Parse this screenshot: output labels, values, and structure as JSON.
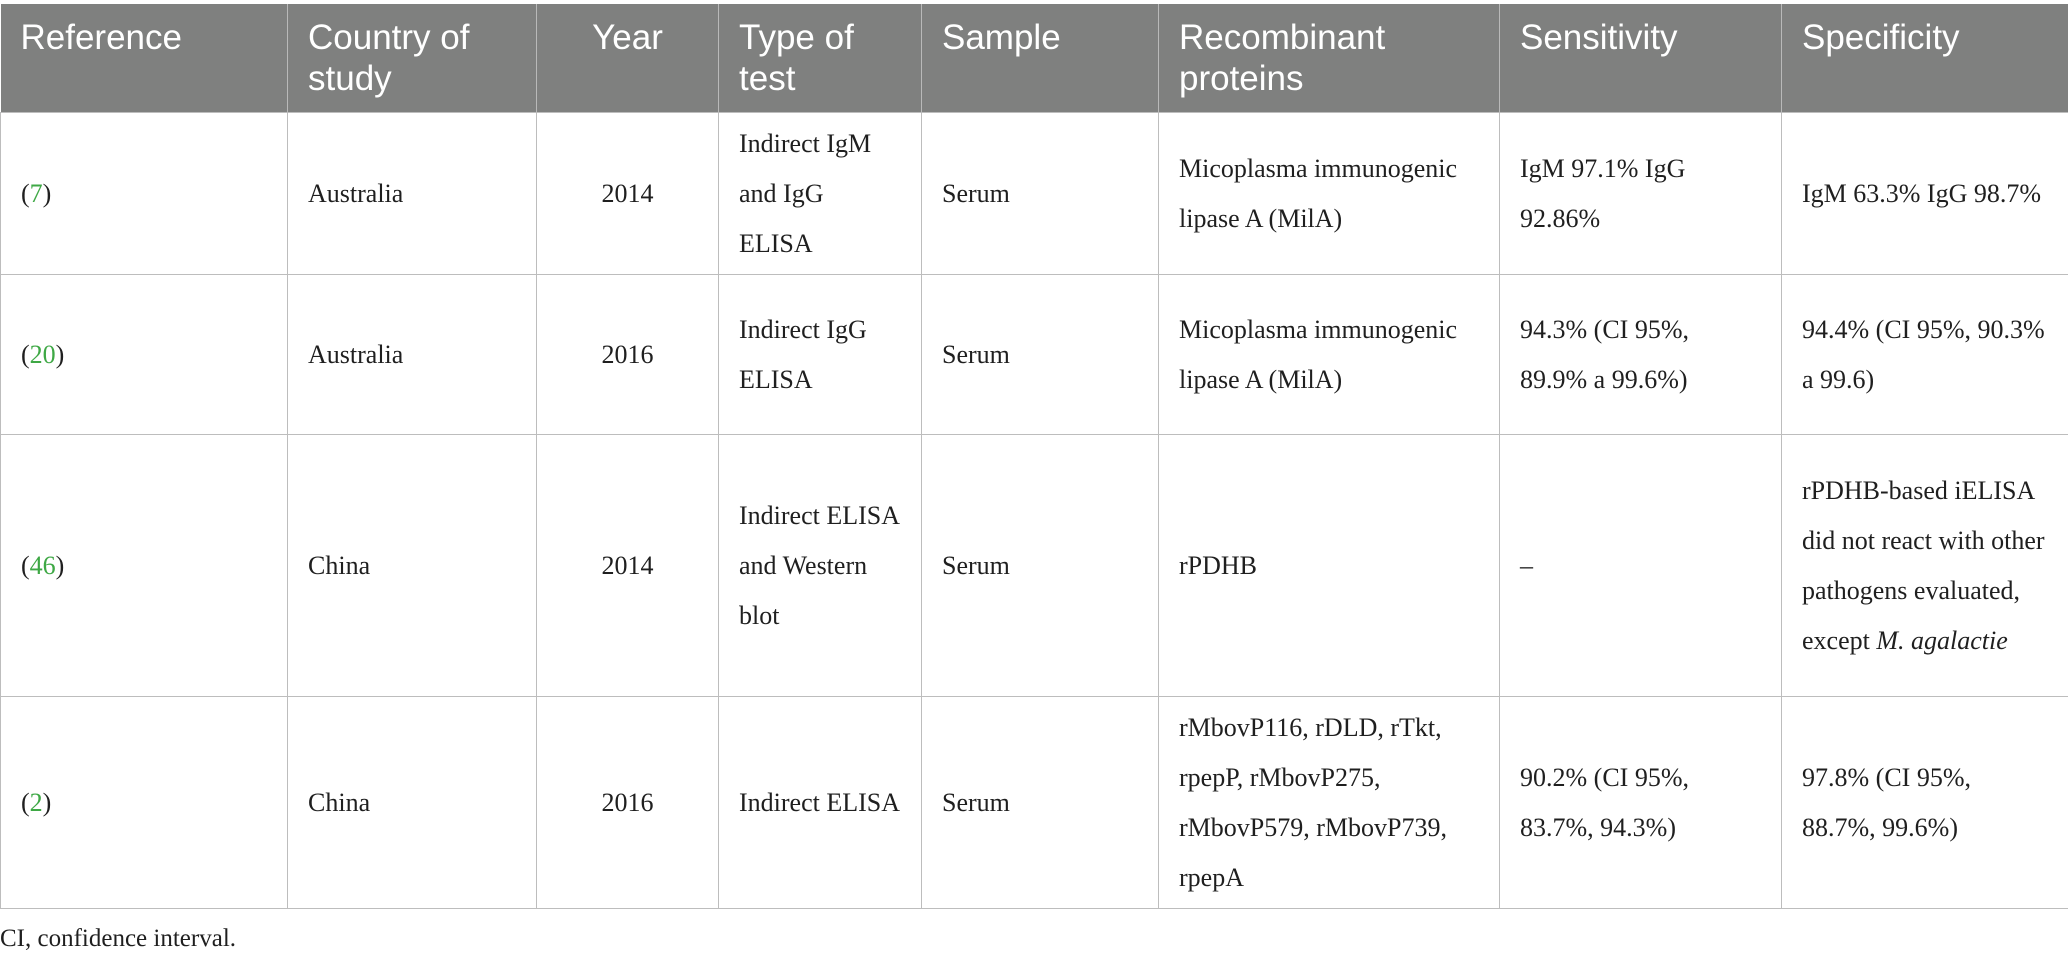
{
  "headers": {
    "reference": "Reference",
    "country": "Country of study",
    "year": "Year",
    "type": "Type of test",
    "sample": "Sample",
    "proteins": "Recombinant proteins",
    "sensitivity": "Sensitivity",
    "specificity": "Specificity"
  },
  "rows": [
    {
      "ref_open": "(",
      "ref_num": "7",
      "ref_close": ")",
      "country": "Australia",
      "year": "2014",
      "type": "Indirect IgM and IgG ELISA",
      "sample": "Serum",
      "proteins": "Micoplasma immunogenic lipase A (MilA)",
      "sensitivity": "IgM 97.1% IgG 92.86%",
      "specificity": "IgM 63.3% IgG 98.7%"
    },
    {
      "ref_open": "(",
      "ref_num": "20",
      "ref_close": ")",
      "country": "Australia",
      "year": "2016",
      "type": "Indirect IgG ELISA",
      "sample": "Serum",
      "proteins": "Micoplasma immunogenic lipase A (MilA)",
      "sensitivity": "94.3% (CI 95%, 89.9% a 99.6%)",
      "specificity": "94.4% (CI 95%, 90.3% a 99.6)"
    },
    {
      "ref_open": "(",
      "ref_num": "46",
      "ref_close": ")",
      "country": "China",
      "year": "2014",
      "type": "Indirect ELISA and Western blot",
      "sample": "Serum",
      "proteins": "rPDHB",
      "sensitivity": "–",
      "specificity_main": "rPDHB-based iELISA did not react with other pathogens evaluated, except ",
      "specificity_italic": "M. agalactie"
    },
    {
      "ref_open": "(",
      "ref_num": "2",
      "ref_close": ")",
      "country": "China",
      "year": "2016",
      "type": "Indirect ELISA",
      "sample": "Serum",
      "proteins": "rMbovP116, rDLD, rTkt, rpepP, rMbovP275, rMbovP579, rMbovP739, rpepA",
      "sensitivity": "90.2% (CI 95%, 83.7%, 94.3%)",
      "specificity": "97.8% (CI 95%, 88.7%, 99.6%)"
    }
  ],
  "footnote": "CI, confidence interval.",
  "colors": {
    "header_bg": "#7f807f",
    "header_text": "#ffffff",
    "link_green": "#3ea845",
    "border": "#bdbdbd"
  }
}
